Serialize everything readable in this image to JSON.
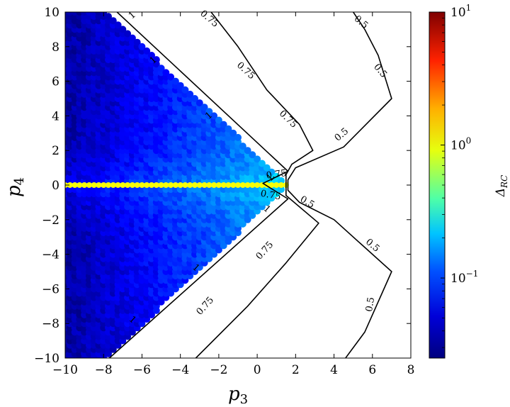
{
  "chart_data": {
    "type": "heatmap",
    "title": "",
    "xlabel": "p",
    "xlabel_sub": "3",
    "ylabel": "p",
    "ylabel_sub": "4",
    "xlim": [
      -10,
      8
    ],
    "ylim": [
      -10,
      10
    ],
    "xticks": [
      "−10",
      "−8",
      "−6",
      "−4",
      "−2",
      "0",
      "2",
      "4",
      "6",
      "8"
    ],
    "xtick_values": [
      -10,
      -8,
      -6,
      -4,
      -2,
      0,
      2,
      4,
      6,
      8
    ],
    "yticks": [
      "−10",
      "−8",
      "−6",
      "−4",
      "−2",
      "0",
      "2",
      "4",
      "6",
      "8",
      "10"
    ],
    "ytick_values": [
      -10,
      -8,
      -6,
      -4,
      -2,
      0,
      2,
      4,
      6,
      8,
      10
    ],
    "grid": false,
    "colorbar": {
      "label": "Δ",
      "label_sub": "RC",
      "scale": "log",
      "range": [
        0.025,
        10
      ],
      "ticks": [
        {
          "value": 10,
          "base": "10",
          "exp": "1"
        },
        {
          "value": 1,
          "base": "10",
          "exp": "0"
        },
        {
          "value": 0.1,
          "base": "10",
          "exp": "−1"
        }
      ]
    },
    "scatter_region": {
      "description_of_values": "Delta_RC is ~0.03-0.05 near the left edge, rising toward ~0.1-0.15 near the wedge apex, and ~1 along the line p4 = 0",
      "apex_p3": 1.6,
      "p4_axis_value": 1.0
    },
    "contours": [
      {
        "level": "1",
        "points": [
          [
            -7.3,
            10
          ],
          [
            1.6,
            0.8
          ],
          [
            0.3,
            0.1
          ],
          [
            1.6,
            -0.8
          ],
          [
            -7.7,
            -10
          ]
        ]
      },
      {
        "level": "0.75",
        "points": [
          [
            -2.4,
            10
          ],
          [
            -1.0,
            8.0
          ],
          [
            0.5,
            5.5
          ],
          [
            2.2,
            3.5
          ],
          [
            2.9,
            2.0
          ],
          [
            1.8,
            1.2
          ],
          [
            1.5,
            0.6
          ],
          [
            1.5,
            -0.6
          ],
          [
            3.2,
            -2.2
          ],
          [
            1.5,
            -4.5
          ],
          [
            -0.5,
            -7.0
          ],
          [
            -3.2,
            -10
          ]
        ]
      },
      {
        "level": "0.5",
        "points": [
          [
            5.0,
            10
          ],
          [
            5.6,
            9.0
          ],
          [
            6.3,
            7.5
          ],
          [
            7.0,
            5.0
          ],
          [
            4.5,
            2.2
          ],
          [
            2.0,
            1.0
          ],
          [
            1.6,
            0.3
          ],
          [
            1.6,
            -0.3
          ],
          [
            2.2,
            -1.0
          ],
          [
            4.0,
            -2.0
          ],
          [
            5.5,
            -3.5
          ],
          [
            7.0,
            -5.0
          ],
          [
            5.6,
            -8.5
          ],
          [
            4.6,
            -10
          ]
        ]
      }
    ],
    "contour_labels": [
      {
        "text": "0.75",
        "x": -2.5,
        "y": 9.6,
        "angle": 40
      },
      {
        "text": "0.75",
        "x": -0.6,
        "y": 6.6,
        "angle": 42
      },
      {
        "text": "0.75",
        "x": 1.6,
        "y": 3.8,
        "angle": 44
      },
      {
        "text": "0.75",
        "x": 1.0,
        "y": 0.6,
        "angle": -8
      },
      {
        "text": "0.75",
        "x": 0.7,
        "y": -0.6,
        "angle": 10
      },
      {
        "text": "0.75",
        "x": 0.4,
        "y": -3.8,
        "angle": -48
      },
      {
        "text": "0.75",
        "x": -2.7,
        "y": -7.0,
        "angle": -48
      },
      {
        "text": "0.5",
        "x": 5.4,
        "y": 9.4,
        "angle": 40
      },
      {
        "text": "0.5",
        "x": 6.4,
        "y": 6.6,
        "angle": 50
      },
      {
        "text": "0.5",
        "x": 4.4,
        "y": 2.9,
        "angle": -40
      },
      {
        "text": "0.5",
        "x": 2.6,
        "y": -1.0,
        "angle": 30
      },
      {
        "text": "0.5",
        "x": 6.0,
        "y": -3.5,
        "angle": 40
      },
      {
        "text": "0.5",
        "x": 5.9,
        "y": -6.9,
        "angle": -80
      },
      {
        "text": "1",
        "x": -6.5,
        "y": 9.8,
        "angle": -42
      },
      {
        "text": "1",
        "x": -5.4,
        "y": 7.2,
        "angle": -42
      },
      {
        "text": "1",
        "x": -2.5,
        "y": 4.0,
        "angle": -42
      },
      {
        "text": "1",
        "x": 0.7,
        "y": 0.4,
        "angle": -42
      },
      {
        "text": "1",
        "x": 0.5,
        "y": -1.4,
        "angle": 42
      },
      {
        "text": "1",
        "x": -3.2,
        "y": -4.8,
        "angle": 42
      },
      {
        "text": "1",
        "x": -6.5,
        "y": -7.8,
        "angle": 42
      }
    ]
  }
}
